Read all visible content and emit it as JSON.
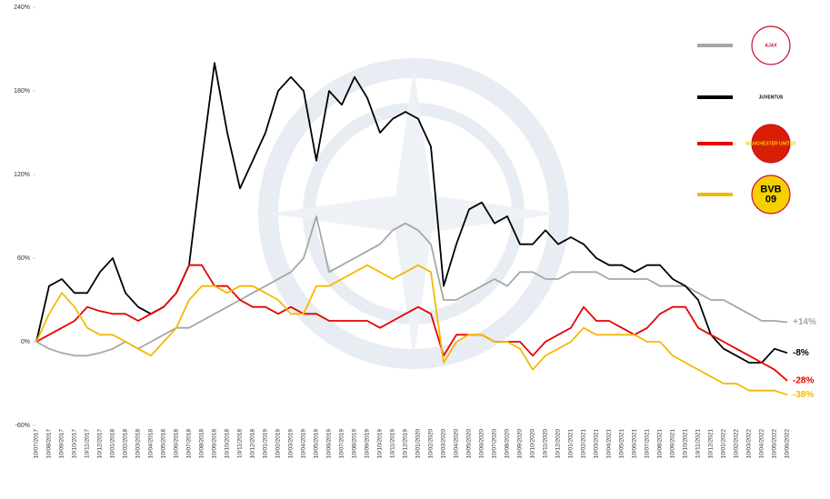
{
  "chart_data": {
    "type": "line",
    "categories": [
      "10/07/2017",
      "10/08/2017",
      "10/09/2017",
      "10/10/2017",
      "10/11/2017",
      "10/12/2017",
      "10/01/2018",
      "10/02/2018",
      "10/03/2018",
      "10/04/2018",
      "10/05/2018",
      "10/06/2018",
      "10/07/2018",
      "10/08/2018",
      "10/09/2018",
      "10/10/2018",
      "10/11/2018",
      "10/12/2018",
      "10/01/2019",
      "10/02/2019",
      "10/03/2019",
      "10/04/2019",
      "10/05/2019",
      "10/06/2019",
      "10/07/2019",
      "10/08/2019",
      "10/09/2019",
      "10/10/2019",
      "10/11/2019",
      "10/12/2019",
      "10/01/2020",
      "10/02/2020",
      "10/03/2020",
      "10/04/2020",
      "10/05/2020",
      "10/06/2020",
      "10/07/2020",
      "10/08/2020",
      "10/09/2020",
      "10/10/2020",
      "10/11/2020",
      "10/12/2020",
      "10/01/2021",
      "10/02/2021",
      "10/03/2021",
      "10/04/2021",
      "10/05/2021",
      "10/06/2021",
      "10/07/2021",
      "10/08/2021",
      "10/09/2021",
      "10/10/2021",
      "10/11/2021",
      "10/12/2021",
      "10/01/2022",
      "10/02/2022",
      "10/03/2022",
      "10/04/2022",
      "10/05/2022",
      "10/06/2022"
    ],
    "series": [
      {
        "color": "#a6a6a6",
        "logo": [
          "AJAX"
        ],
        "end_label": "+14%",
        "values": [
          0,
          -5,
          -8,
          -10,
          -10,
          -8,
          -5,
          0,
          -5,
          0,
          5,
          10,
          10,
          15,
          20,
          25,
          30,
          35,
          40,
          45,
          50,
          60,
          90,
          50,
          55,
          60,
          65,
          70,
          80,
          85,
          80,
          70,
          30,
          30,
          35,
          40,
          45,
          40,
          50,
          50,
          45,
          45,
          50,
          50,
          50,
          45,
          45,
          45,
          45,
          40,
          40,
          40,
          35,
          30,
          30,
          25,
          20,
          15,
          15,
          14
        ]
      },
      {
        "color": "#000000",
        "logo": [
          "JUVENTUS"
        ],
        "end_label": "-8%",
        "values": [
          0,
          40,
          45,
          35,
          35,
          50,
          60,
          35,
          25,
          20,
          25,
          35,
          55,
          130,
          200,
          150,
          110,
          130,
          150,
          180,
          190,
          180,
          130,
          180,
          170,
          190,
          175,
          150,
          160,
          165,
          160,
          140,
          40,
          70,
          95,
          100,
          85,
          90,
          70,
          70,
          80,
          70,
          75,
          70,
          60,
          55,
          55,
          50,
          55,
          55,
          45,
          40,
          30,
          5,
          -5,
          -10,
          -15,
          -15,
          -5,
          -8
        ]
      },
      {
        "color": "#e60000",
        "logo": [
          "MANCHESTER UNITED"
        ],
        "end_label": "-28%",
        "values": [
          0,
          5,
          10,
          15,
          25,
          22,
          20,
          20,
          15,
          20,
          25,
          35,
          55,
          55,
          40,
          40,
          30,
          25,
          25,
          20,
          25,
          20,
          20,
          15,
          15,
          15,
          15,
          10,
          15,
          20,
          25,
          20,
          -10,
          5,
          5,
          5,
          0,
          0,
          0,
          -10,
          0,
          5,
          10,
          25,
          15,
          15,
          10,
          5,
          10,
          20,
          25,
          25,
          10,
          5,
          0,
          -5,
          -10,
          -15,
          -20,
          -28
        ]
      },
      {
        "color": "#f5b800",
        "logo": [
          "BVB",
          "09"
        ],
        "end_label": "-38%",
        "values": [
          0,
          20,
          35,
          25,
          10,
          5,
          5,
          0,
          -5,
          -10,
          0,
          10,
          30,
          40,
          40,
          35,
          40,
          40,
          35,
          30,
          20,
          20,
          40,
          40,
          45,
          50,
          55,
          50,
          45,
          50,
          55,
          50,
          -15,
          0,
          5,
          5,
          0,
          0,
          -5,
          -20,
          -10,
          -5,
          0,
          10,
          5,
          5,
          5,
          5,
          0,
          0,
          -10,
          -15,
          -20,
          -25,
          -30,
          -30,
          -35,
          -35,
          -35,
          -38
        ]
      }
    ],
    "ylim": [
      -60,
      240
    ],
    "yticks": [
      {
        "value": -60,
        "label": "-60%"
      },
      {
        "value": 0,
        "label": "0%"
      },
      {
        "value": 60,
        "label": "60%"
      },
      {
        "value": 120,
        "label": "120%"
      },
      {
        "value": 180,
        "label": "180%"
      },
      {
        "value": 240,
        "label": "240%"
      }
    ],
    "grid": false
  }
}
